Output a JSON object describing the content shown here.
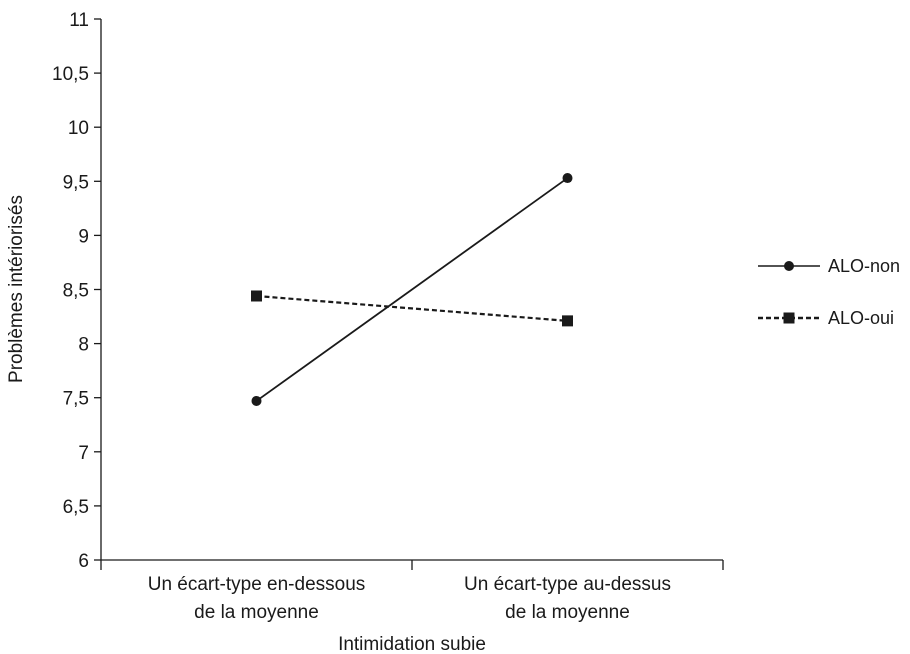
{
  "chart_data": {
    "type": "line",
    "title": "",
    "xlabel": "Intimidation subie",
    "ylabel": "Problèmes intériorisés",
    "ylim": [
      6,
      11
    ],
    "yticks": [
      "6",
      "6,5",
      "7",
      "7,5",
      "8",
      "8,5",
      "9",
      "9,5",
      "10",
      "10,5",
      "11"
    ],
    "categories": [
      [
        "Un écart-type en-dessous",
        "de la moyenne"
      ],
      [
        "Un écart-type au-dessus",
        "de la moyenne"
      ]
    ],
    "series": [
      {
        "name": "ALO-non",
        "values": [
          7.47,
          9.53
        ],
        "marker": "circle",
        "dash": "solid",
        "color": "#1a1a1a"
      },
      {
        "name": "ALO-oui",
        "values": [
          8.44,
          8.21
        ],
        "marker": "square",
        "dash": "dashed",
        "color": "#1a1a1a"
      }
    ],
    "legend": {
      "position": "right"
    },
    "grid": false
  }
}
